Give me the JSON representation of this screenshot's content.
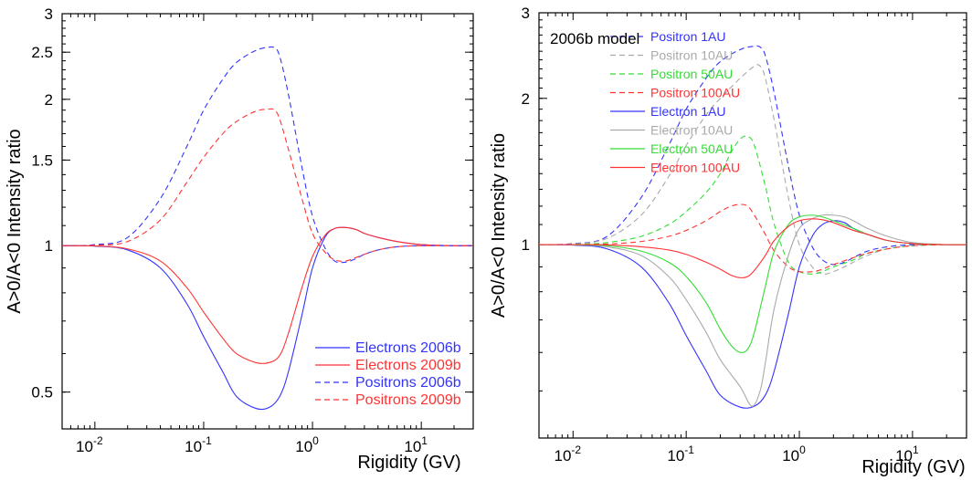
{
  "chart_data": [
    {
      "type": "line",
      "title": "",
      "xlabel": "Rigidity (GV)",
      "ylabel": "A>0/A<0 Intensity ratio",
      "xscale": "log",
      "yscale": "log",
      "xlim": [
        0.005,
        30
      ],
      "ylim": [
        0.42,
        3.0
      ],
      "x_tick_labels": [
        {
          "base": "10",
          "exp": "-2",
          "value": 0.01
        },
        {
          "base": "10",
          "exp": "-1",
          "value": 0.1
        },
        {
          "base": "10",
          "exp": "0",
          "value": 1
        },
        {
          "base": "10",
          "exp": "1",
          "value": 10
        }
      ],
      "y_tick_labels": [
        {
          "label": "0.5",
          "value": 0.5
        },
        {
          "label": "1",
          "value": 1
        },
        {
          "label": "1.5",
          "value": 1.5
        },
        {
          "label": "2",
          "value": 2
        },
        {
          "label": "2.5",
          "value": 2.5
        },
        {
          "label": "3",
          "value": 3
        }
      ],
      "legend_position": "bottom-right",
      "annotation": "",
      "series": [
        {
          "name": "Electrons 2006b",
          "color": "#3333ff",
          "dash": "solid",
          "x": [
            0.005,
            0.01,
            0.02,
            0.04,
            0.07,
            0.1,
            0.15,
            0.2,
            0.3,
            0.4,
            0.5,
            0.6,
            0.8,
            1.0,
            1.3,
            1.6,
            2.0,
            2.5,
            3.0,
            4.0,
            6.0,
            10.0,
            20.0,
            30.0
          ],
          "values": [
            1.0,
            0.998,
            0.98,
            0.9,
            0.76,
            0.65,
            0.55,
            0.49,
            0.463,
            0.465,
            0.49,
            0.55,
            0.72,
            0.9,
            1.04,
            1.085,
            1.09,
            1.08,
            1.06,
            1.04,
            1.02,
            1.005,
            1.0,
            1.0
          ]
        },
        {
          "name": "Electrons 2009b",
          "color": "#ff3333",
          "dash": "solid",
          "x": [
            0.005,
            0.01,
            0.02,
            0.04,
            0.07,
            0.1,
            0.15,
            0.2,
            0.3,
            0.4,
            0.5,
            0.6,
            0.8,
            1.0,
            1.3,
            1.6,
            2.0,
            2.5,
            3.0,
            4.0,
            6.0,
            10.0,
            20.0,
            30.0
          ],
          "values": [
            1.0,
            0.999,
            0.985,
            0.93,
            0.82,
            0.73,
            0.645,
            0.6,
            0.575,
            0.575,
            0.595,
            0.66,
            0.82,
            0.95,
            1.05,
            1.085,
            1.09,
            1.08,
            1.06,
            1.04,
            1.02,
            1.005,
            1.0,
            1.0
          ]
        },
        {
          "name": "Positrons 2006b",
          "color": "#3333ff",
          "dash": "dashed",
          "x": [
            0.005,
            0.01,
            0.02,
            0.04,
            0.07,
            0.1,
            0.15,
            0.2,
            0.3,
            0.4,
            0.45,
            0.5,
            0.6,
            0.8,
            1.0,
            1.3,
            1.6,
            2.0,
            2.5,
            3.0,
            4.0,
            6.0,
            10.0,
            20.0,
            30.0
          ],
          "values": [
            1.0,
            1.005,
            1.04,
            1.25,
            1.6,
            1.9,
            2.2,
            2.38,
            2.52,
            2.56,
            2.55,
            2.45,
            2.05,
            1.45,
            1.15,
            0.99,
            0.93,
            0.925,
            0.94,
            0.96,
            0.98,
            0.995,
            1.0,
            1.0,
            1.0
          ]
        },
        {
          "name": "Positrons 2009b",
          "color": "#ff3333",
          "dash": "dashed",
          "x": [
            0.005,
            0.01,
            0.02,
            0.04,
            0.07,
            0.1,
            0.15,
            0.2,
            0.3,
            0.4,
            0.45,
            0.5,
            0.6,
            0.8,
            1.0,
            1.3,
            1.6,
            2.0,
            2.5,
            3.0,
            4.0,
            6.0,
            10.0,
            20.0,
            30.0
          ],
          "values": [
            1.0,
            1.002,
            1.02,
            1.13,
            1.35,
            1.52,
            1.7,
            1.8,
            1.89,
            1.91,
            1.9,
            1.82,
            1.58,
            1.25,
            1.06,
            0.97,
            0.935,
            0.93,
            0.945,
            0.96,
            0.98,
            0.995,
            1.0,
            1.0,
            1.0
          ]
        }
      ]
    },
    {
      "type": "line",
      "title": "",
      "xlabel": "Rigidity (GV)",
      "ylabel": "A>0/A<0 Intensity ratio",
      "xscale": "log",
      "yscale": "log",
      "xlim": [
        0.005,
        30
      ],
      "ylim": [
        0.4,
        3.0
      ],
      "x_tick_labels": [
        {
          "base": "10",
          "exp": "-2",
          "value": 0.01
        },
        {
          "base": "10",
          "exp": "-1",
          "value": 0.1
        },
        {
          "base": "10",
          "exp": "0",
          "value": 1
        },
        {
          "base": "10",
          "exp": "1",
          "value": 10
        }
      ],
      "y_tick_labels": [
        {
          "label": "1",
          "value": 1
        },
        {
          "label": "2",
          "value": 2
        },
        {
          "label": "3",
          "value": 3
        }
      ],
      "legend_position": "top-right",
      "annotation": "2006b model",
      "series": [
        {
          "name": "Positron 1AU",
          "color": "#3333ff",
          "dash": "dashed",
          "x": [
            0.005,
            0.01,
            0.02,
            0.04,
            0.07,
            0.1,
            0.15,
            0.2,
            0.3,
            0.4,
            0.45,
            0.5,
            0.6,
            0.8,
            1.0,
            1.3,
            1.6,
            2.0,
            2.5,
            3.0,
            4.0,
            6.0,
            10.0,
            20.0,
            30.0
          ],
          "values": [
            1.0,
            1.005,
            1.04,
            1.25,
            1.6,
            1.9,
            2.2,
            2.38,
            2.52,
            2.56,
            2.55,
            2.45,
            2.05,
            1.45,
            1.15,
            0.99,
            0.93,
            0.91,
            0.92,
            0.94,
            0.97,
            0.99,
            1.0,
            1.0,
            1.0
          ]
        },
        {
          "name": "Positron 10AU",
          "color": "#aaaaaa",
          "dash": "dashed",
          "x": [
            0.005,
            0.01,
            0.02,
            0.04,
            0.07,
            0.1,
            0.15,
            0.2,
            0.3,
            0.4,
            0.45,
            0.5,
            0.6,
            0.8,
            1.0,
            1.3,
            1.6,
            2.0,
            2.5,
            3.0,
            4.0,
            6.0,
            10.0,
            20.0,
            30.0
          ],
          "values": [
            1.0,
            1.003,
            1.03,
            1.15,
            1.38,
            1.6,
            1.85,
            2.0,
            2.2,
            2.33,
            2.33,
            2.2,
            1.8,
            1.25,
            1.0,
            0.9,
            0.87,
            0.88,
            0.9,
            0.92,
            0.95,
            0.98,
            0.995,
            1.0,
            1.0
          ]
        },
        {
          "name": "Positron 50AU",
          "color": "#33dd33",
          "dash": "dashed",
          "x": [
            0.005,
            0.01,
            0.02,
            0.04,
            0.07,
            0.1,
            0.15,
            0.2,
            0.25,
            0.3,
            0.35,
            0.4,
            0.5,
            0.6,
            0.8,
            1.0,
            1.3,
            1.6,
            2.0,
            3.0,
            4.0,
            6.0,
            10.0,
            20.0,
            30.0
          ],
          "values": [
            1.0,
            1.001,
            1.01,
            1.04,
            1.1,
            1.17,
            1.28,
            1.4,
            1.55,
            1.65,
            1.67,
            1.6,
            1.32,
            1.1,
            0.92,
            0.88,
            0.87,
            0.88,
            0.9,
            0.93,
            0.96,
            0.98,
            0.995,
            1.0,
            1.0
          ]
        },
        {
          "name": "Positron 100AU",
          "color": "#ff3333",
          "dash": "dashed",
          "x": [
            0.005,
            0.01,
            0.02,
            0.04,
            0.07,
            0.1,
            0.15,
            0.2,
            0.25,
            0.3,
            0.35,
            0.4,
            0.5,
            0.6,
            0.8,
            1.0,
            1.3,
            1.6,
            2.0,
            3.0,
            4.0,
            6.0,
            10.0,
            20.0,
            30.0
          ],
          "values": [
            1.0,
            1.0,
            1.003,
            1.015,
            1.04,
            1.07,
            1.12,
            1.17,
            1.2,
            1.21,
            1.2,
            1.15,
            1.05,
            0.97,
            0.9,
            0.88,
            0.88,
            0.89,
            0.91,
            0.94,
            0.96,
            0.98,
            0.995,
            1.0,
            1.0
          ]
        },
        {
          "name": "Electron 1AU",
          "color": "#3333ff",
          "dash": "solid",
          "x": [
            0.005,
            0.01,
            0.02,
            0.04,
            0.07,
            0.1,
            0.15,
            0.2,
            0.3,
            0.4,
            0.5,
            0.6,
            0.8,
            1.0,
            1.3,
            1.6,
            2.0,
            2.5,
            3.0,
            4.0,
            6.0,
            10.0,
            20.0,
            30.0
          ],
          "values": [
            1.0,
            0.998,
            0.98,
            0.9,
            0.76,
            0.65,
            0.55,
            0.49,
            0.463,
            0.465,
            0.49,
            0.55,
            0.72,
            0.9,
            1.04,
            1.1,
            1.12,
            1.11,
            1.08,
            1.05,
            1.02,
            1.005,
            1.0,
            1.0
          ]
        },
        {
          "name": "Electron 10AU",
          "color": "#aaaaaa",
          "dash": "solid",
          "x": [
            0.005,
            0.01,
            0.02,
            0.04,
            0.07,
            0.1,
            0.15,
            0.2,
            0.3,
            0.38,
            0.45,
            0.5,
            0.6,
            0.8,
            1.0,
            1.3,
            1.6,
            2.0,
            2.5,
            3.0,
            4.0,
            6.0,
            10.0,
            20.0,
            30.0
          ],
          "values": [
            1.0,
            0.999,
            0.99,
            0.95,
            0.86,
            0.77,
            0.66,
            0.58,
            0.51,
            0.465,
            0.5,
            0.57,
            0.74,
            0.95,
            1.08,
            1.13,
            1.15,
            1.15,
            1.14,
            1.12,
            1.08,
            1.04,
            1.01,
            1.0,
            1.0
          ]
        },
        {
          "name": "Electron 50AU",
          "color": "#33dd33",
          "dash": "solid",
          "x": [
            0.005,
            0.01,
            0.02,
            0.04,
            0.07,
            0.1,
            0.15,
            0.2,
            0.25,
            0.3,
            0.35,
            0.4,
            0.5,
            0.6,
            0.8,
            1.0,
            1.3,
            1.6,
            2.0,
            3.0,
            4.0,
            6.0,
            10.0,
            20.0,
            30.0
          ],
          "values": [
            1.0,
            1.0,
            0.995,
            0.97,
            0.92,
            0.86,
            0.76,
            0.67,
            0.62,
            0.6,
            0.61,
            0.66,
            0.82,
            0.97,
            1.1,
            1.14,
            1.15,
            1.14,
            1.12,
            1.08,
            1.05,
            1.02,
            1.005,
            1.0,
            1.0
          ]
        },
        {
          "name": "Electron 100AU",
          "color": "#ff3333",
          "dash": "solid",
          "x": [
            0.005,
            0.01,
            0.02,
            0.04,
            0.07,
            0.1,
            0.15,
            0.2,
            0.25,
            0.3,
            0.35,
            0.4,
            0.5,
            0.6,
            0.8,
            1.0,
            1.3,
            1.6,
            2.0,
            3.0,
            4.0,
            6.0,
            10.0,
            20.0,
            30.0
          ],
          "values": [
            1.0,
            1.0,
            0.999,
            0.99,
            0.975,
            0.955,
            0.92,
            0.89,
            0.865,
            0.855,
            0.86,
            0.885,
            0.95,
            1.02,
            1.09,
            1.12,
            1.13,
            1.125,
            1.11,
            1.07,
            1.05,
            1.02,
            1.005,
            1.0,
            1.0
          ]
        }
      ]
    }
  ]
}
